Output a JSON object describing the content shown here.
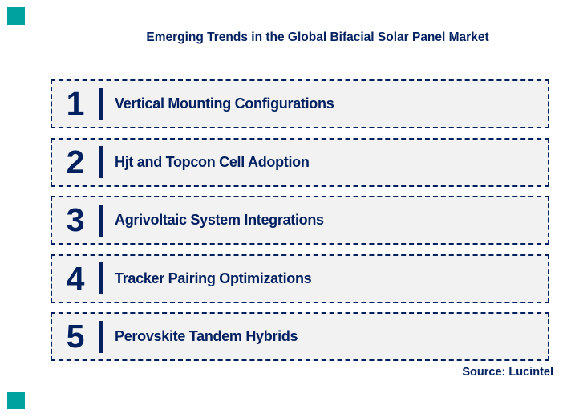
{
  "page": {
    "title": "Emerging Trends in the Global Bifacial Solar Panel Market",
    "source": "Source: Lucintel"
  },
  "colors": {
    "navy": "#002060",
    "teal": "#00a2a0",
    "box_background": "#f2f2f2"
  },
  "trends": [
    {
      "number": "1",
      "label": "Vertical Mounting Configurations"
    },
    {
      "number": "2",
      "label": "Hjt and Topcon Cell Adoption"
    },
    {
      "number": "3",
      "label": "Agrivoltaic System Integrations"
    },
    {
      "number": "4",
      "label": "Tracker Pairing Optimizations"
    },
    {
      "number": "5",
      "label": "Perovskite Tandem Hybrids"
    }
  ]
}
